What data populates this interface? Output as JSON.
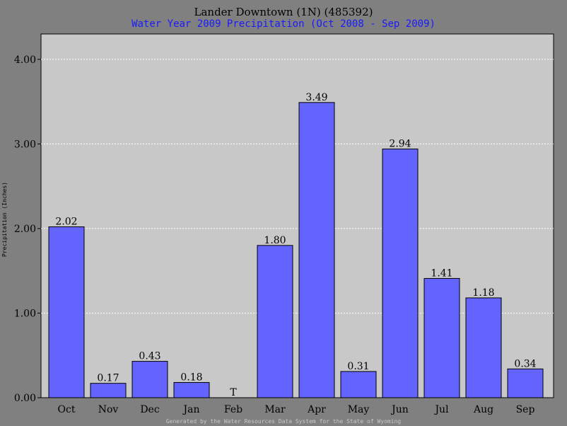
{
  "chart_data": {
    "type": "bar",
    "title": "Lander Downtown (1N) (485392)",
    "subtitle": "Water Year 2009 Precipitation (Oct 2008 - Sep 2009)",
    "ylabel": "Precipitation (Inches)",
    "xlabel": "",
    "footer": "Generated by the Water Resources Data System for the State of Wyoming",
    "ylim": [
      0,
      4.3
    ],
    "yticks": [
      0,
      1,
      2,
      3,
      4
    ],
    "ytick_labels": [
      "0.00",
      "1.00",
      "2.00",
      "3.00",
      "4.00"
    ],
    "grid": true,
    "categories": [
      "Oct",
      "Nov",
      "Dec",
      "Jan",
      "Feb",
      "Mar",
      "Apr",
      "May",
      "Jun",
      "Jul",
      "Aug",
      "Sep"
    ],
    "values": [
      2.02,
      0.17,
      0.43,
      0.18,
      0,
      1.8,
      3.49,
      0.31,
      2.94,
      1.41,
      1.18,
      0.34
    ],
    "labels": [
      "2.02",
      "0.17",
      "0.43",
      "0.18",
      "T",
      "1.80",
      "3.49",
      "0.31",
      "2.94",
      "1.41",
      "1.18",
      "0.34"
    ],
    "bar_color": "#6363ff",
    "plot_bg": "#c8c8c8",
    "page_bg": "#808080",
    "subtitle_color": "#1a1aff"
  }
}
